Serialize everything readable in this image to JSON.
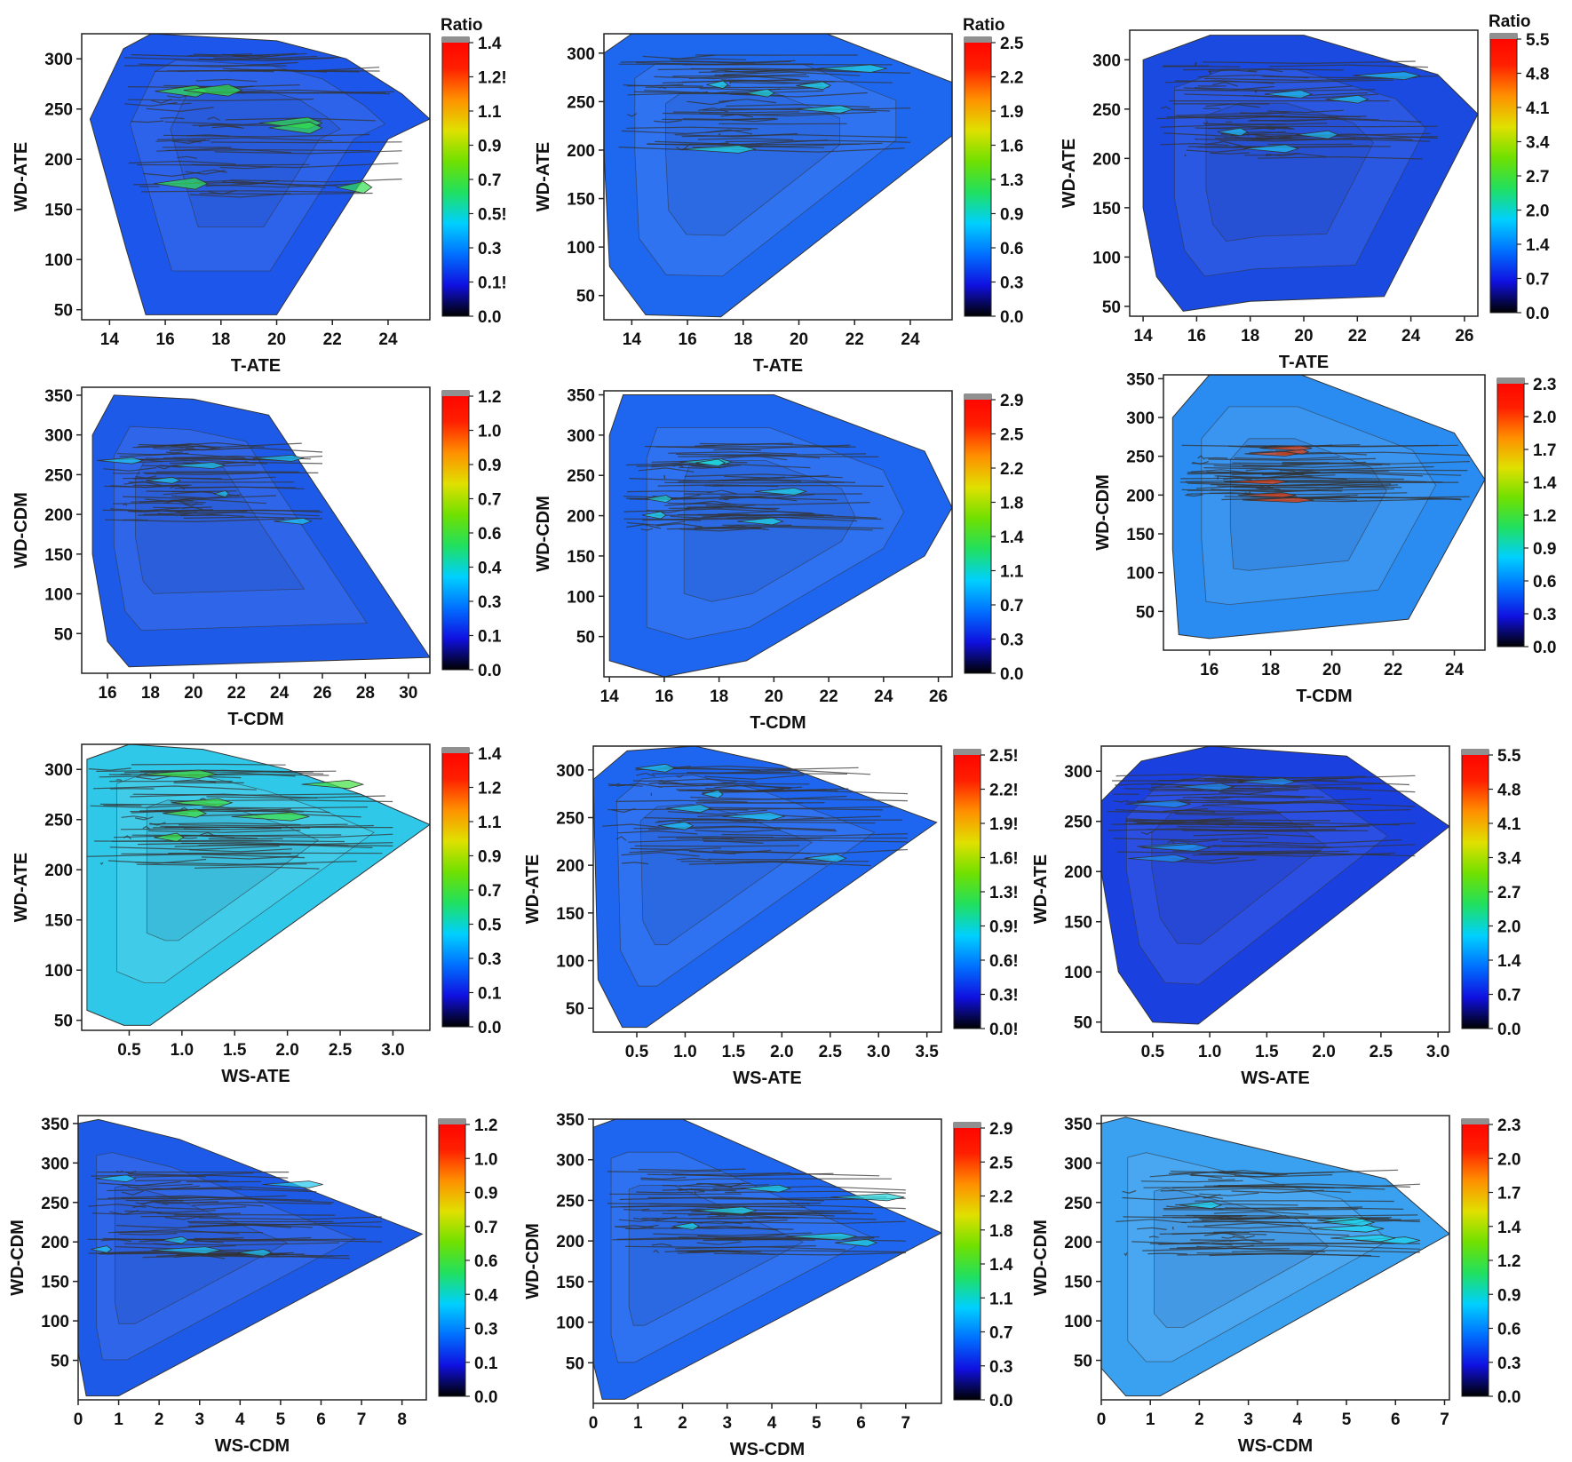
{
  "figure_caption": "",
  "colors": {
    "frame": "#222222",
    "contour_line": "#333333",
    "colormap": [
      "#000000",
      "#1010e0",
      "#0070ff",
      "#00d0ff",
      "#20e060",
      "#70e000",
      "#e0e000",
      "#ff9000",
      "#ff2000",
      "#ff0000"
    ],
    "colorbar_cap": "#909090"
  },
  "chart_data": [
    {
      "type": "heatmap",
      "xlabel": "T-ATE",
      "ylabel": "WD-ATE",
      "colorbar_title": "Ratio",
      "xticks": [
        "14",
        "16",
        "18",
        "20",
        "22",
        "24"
      ],
      "yticks": [
        "50",
        "100",
        "150",
        "200",
        "250",
        "300"
      ],
      "xlim": [
        13,
        25.5
      ],
      "ylim": [
        40,
        325
      ],
      "colorbar_ticks": [
        "0.0",
        "0.1!",
        "0.3",
        "0.5!",
        "0.7",
        "0.9",
        "1.1",
        "1.2!",
        "1.4"
      ],
      "hull": [
        [
          15.3,
          45
        ],
        [
          14.6,
          110
        ],
        [
          13.3,
          240
        ],
        [
          14.5,
          310
        ],
        [
          15.5,
          325
        ],
        [
          20,
          318
        ],
        [
          22.5,
          300
        ],
        [
          24.5,
          265
        ],
        [
          25.5,
          240
        ],
        [
          24,
          220
        ],
        [
          20,
          45
        ]
      ],
      "dense_band": [
        14.5,
        24.5,
        160,
        305
      ],
      "base_color": "#1c56ea",
      "accent_color": "#30e050"
    },
    {
      "type": "heatmap",
      "xlabel": "T-ATE",
      "ylabel": "WD-ATE",
      "colorbar_title": "Ratio",
      "xticks": [
        "14",
        "16",
        "18",
        "20",
        "22",
        "24"
      ],
      "yticks": [
        "50",
        "100",
        "150",
        "200",
        "250",
        "300"
      ],
      "xlim": [
        13,
        25.5
      ],
      "ylim": [
        25,
        320
      ],
      "colorbar_ticks": [
        "0.0",
        "0.3",
        "0.6",
        "0.9",
        "1.3",
        "1.6",
        "1.9",
        "2.2",
        "2.5"
      ],
      "hull": [
        [
          14.5,
          30
        ],
        [
          13.2,
          80
        ],
        [
          13,
          200
        ],
        [
          13,
          300
        ],
        [
          14,
          320
        ],
        [
          21,
          320
        ],
        [
          25.5,
          270
        ],
        [
          25.5,
          215
        ],
        [
          17.2,
          28
        ]
      ],
      "dense_band": [
        13.5,
        24,
        200,
        300
      ],
      "base_color": "#1e68f0",
      "accent_color": "#20d8e0"
    },
    {
      "type": "heatmap",
      "xlabel": "T-ATE",
      "ylabel": "WD-ATE",
      "colorbar_title": "Ratio",
      "xticks": [
        "14",
        "16",
        "18",
        "20",
        "22",
        "24",
        "26"
      ],
      "yticks": [
        "50",
        "100",
        "150",
        "200",
        "250",
        "300"
      ],
      "xlim": [
        13.5,
        26.5
      ],
      "ylim": [
        40,
        330
      ],
      "colorbar_ticks": [
        "0.0",
        "0.7",
        "1.4",
        "2.0",
        "2.7",
        "3.4",
        "4.1",
        "4.8",
        "5.5"
      ],
      "hull": [
        [
          15.5,
          45
        ],
        [
          14.5,
          80
        ],
        [
          14,
          150
        ],
        [
          14,
          300
        ],
        [
          16.5,
          325
        ],
        [
          20,
          325
        ],
        [
          25,
          285
        ],
        [
          26.5,
          245
        ],
        [
          23,
          60
        ],
        [
          18,
          55
        ]
      ],
      "dense_band": [
        14.5,
        25,
        200,
        300
      ],
      "base_color": "#1a4ae0",
      "accent_color": "#20c0f0"
    },
    {
      "type": "heatmap",
      "xlabel": "T-CDM",
      "ylabel": "WD-CDM",
      "colorbar_title": "",
      "xticks": [
        "16",
        "18",
        "20",
        "22",
        "24",
        "26",
        "28",
        "30"
      ],
      "yticks": [
        "50",
        "100",
        "150",
        "200",
        "250",
        "300",
        "350"
      ],
      "xlim": [
        14.8,
        31
      ],
      "ylim": [
        0,
        360
      ],
      "colorbar_ticks": [
        "0.0",
        "0.1",
        "0.3",
        "0.4",
        "0.6",
        "0.7",
        "0.9",
        "1.0",
        "1.2"
      ],
      "hull": [
        [
          17,
          8
        ],
        [
          16,
          40
        ],
        [
          15.3,
          150
        ],
        [
          15.3,
          300
        ],
        [
          16.3,
          350
        ],
        [
          20,
          345
        ],
        [
          23.5,
          325
        ],
        [
          31,
          20
        ]
      ],
      "dense_band": [
        15.5,
        26,
        190,
        290
      ],
      "base_color": "#1e5ae8",
      "accent_color": "#20c8f0"
    },
    {
      "type": "heatmap",
      "xlabel": "T-CDM",
      "ylabel": "WD-CDM",
      "colorbar_title": "",
      "xticks": [
        "14",
        "16",
        "18",
        "20",
        "22",
        "24",
        "26"
      ],
      "yticks": [
        "50",
        "100",
        "150",
        "200",
        "250",
        "300",
        "350"
      ],
      "xlim": [
        13.8,
        26.5
      ],
      "ylim": [
        0,
        355
      ],
      "colorbar_ticks": [
        "0.0",
        "0.3",
        "0.7",
        "1.1",
        "1.4",
        "1.8",
        "2.2",
        "2.5",
        "2.9"
      ],
      "hull": [
        [
          16,
          0
        ],
        [
          14,
          20
        ],
        [
          14,
          300
        ],
        [
          14.5,
          350
        ],
        [
          20,
          350
        ],
        [
          25.5,
          280
        ],
        [
          26.5,
          210
        ],
        [
          25.5,
          150
        ],
        [
          19,
          20
        ]
      ],
      "dense_band": [
        14.5,
        24,
        180,
        290
      ],
      "base_color": "#1e66f0",
      "accent_color": "#20d8e0"
    },
    {
      "type": "heatmap",
      "xlabel": "T-CDM",
      "ylabel": "WD-CDM",
      "colorbar_title": "",
      "xticks": [
        "16",
        "18",
        "20",
        "22",
        "24"
      ],
      "yticks": [
        "50",
        "100",
        "150",
        "200",
        "250",
        "300",
        "350"
      ],
      "xlim": [
        14.5,
        25
      ],
      "ylim": [
        0,
        355
      ],
      "colorbar_ticks": [
        "0.0",
        "0.3",
        "0.6",
        "0.9",
        "1.2",
        "1.4",
        "1.7",
        "2.0",
        "2.3"
      ],
      "hull": [
        [
          15,
          20
        ],
        [
          14.8,
          130
        ],
        [
          14.8,
          300
        ],
        [
          16,
          355
        ],
        [
          19,
          355
        ],
        [
          24,
          280
        ],
        [
          25,
          220
        ],
        [
          22.5,
          40
        ],
        [
          16,
          15
        ]
      ],
      "dense_band": [
        15,
        24.5,
        190,
        265
      ],
      "base_color": "#2a8cf0",
      "accent_color": "#f04010"
    },
    {
      "type": "heatmap",
      "xlabel": "WS-ATE",
      "ylabel": "WD-ATE",
      "colorbar_title": "",
      "xticks": [
        "0.5",
        "1.0",
        "1.5",
        "2.0",
        "2.5",
        "3.0"
      ],
      "yticks": [
        "50",
        "100",
        "150",
        "200",
        "250",
        "300"
      ],
      "xlim": [
        0.05,
        3.35
      ],
      "ylim": [
        40,
        325
      ],
      "colorbar_ticks": [
        "0.0",
        "0.1",
        "0.3",
        "0.5",
        "0.7",
        "0.9",
        "1.1",
        "1.2",
        "1.4"
      ],
      "hull": [
        [
          0.45,
          45
        ],
        [
          0.1,
          60
        ],
        [
          0.1,
          310
        ],
        [
          0.5,
          325
        ],
        [
          1.2,
          320
        ],
        [
          2.0,
          300
        ],
        [
          2.7,
          275
        ],
        [
          3.35,
          245
        ],
        [
          0.7,
          45
        ]
      ],
      "dense_band": [
        0.1,
        3.0,
        200,
        305
      ],
      "base_color": "#30c8e8",
      "accent_color": "#40e040"
    },
    {
      "type": "heatmap",
      "xlabel": "WS-ATE",
      "ylabel": "WD-ATE",
      "colorbar_title": "",
      "xticks": [
        "0.5",
        "1.0",
        "1.5",
        "2.0",
        "2.5",
        "3.0",
        "3.5"
      ],
      "yticks": [
        "50",
        "100",
        "150",
        "200",
        "250",
        "300"
      ],
      "xlim": [
        0.05,
        3.65
      ],
      "ylim": [
        25,
        325
      ],
      "colorbar_ticks": [
        "0.0!",
        "0.3!",
        "0.6!",
        "0.9!",
        "1.3!",
        "1.6!",
        "1.9!",
        "2.2!",
        "2.5!"
      ],
      "hull": [
        [
          0.35,
          30
        ],
        [
          0.1,
          80
        ],
        [
          0.05,
          290
        ],
        [
          0.4,
          320
        ],
        [
          1.1,
          325
        ],
        [
          2.0,
          305
        ],
        [
          3.6,
          245
        ],
        [
          0.6,
          30
        ]
      ],
      "dense_band": [
        0.1,
        3.3,
        200,
        305
      ],
      "base_color": "#1e66f0",
      "accent_color": "#20c8f0"
    },
    {
      "type": "heatmap",
      "xlabel": "WS-ATE",
      "ylabel": "WD-ATE",
      "colorbar_title": "",
      "xticks": [
        "0.5",
        "1.0",
        "1.5",
        "2.0",
        "2.5",
        "3.0"
      ],
      "yticks": [
        "50",
        "100",
        "150",
        "200",
        "250",
        "300"
      ],
      "xlim": [
        0.05,
        3.1
      ],
      "ylim": [
        40,
        325
      ],
      "colorbar_ticks": [
        "0.0",
        "0.7",
        "1.4",
        "2.0",
        "2.7",
        "3.4",
        "4.1",
        "4.8",
        "5.5"
      ],
      "hull": [
        [
          0.5,
          50
        ],
        [
          0.2,
          100
        ],
        [
          0.05,
          200
        ],
        [
          0.05,
          270
        ],
        [
          0.4,
          310
        ],
        [
          1.0,
          325
        ],
        [
          2.2,
          315
        ],
        [
          3.1,
          245
        ],
        [
          0.9,
          48
        ]
      ],
      "dense_band": [
        0.1,
        2.8,
        210,
        300
      ],
      "base_color": "#1a40e0",
      "accent_color": "#2090f0"
    },
    {
      "type": "heatmap",
      "xlabel": "WS-CDM",
      "ylabel": "WD-CDM",
      "colorbar_title": "",
      "xticks": [
        "0",
        "1",
        "2",
        "3",
        "4",
        "5",
        "6",
        "7",
        "8"
      ],
      "yticks": [
        "50",
        "100",
        "150",
        "200",
        "250",
        "300",
        "350"
      ],
      "xlim": [
        0,
        8.6
      ],
      "ylim": [
        0,
        360
      ],
      "colorbar_ticks": [
        "0.0",
        "0.1",
        "0.3",
        "0.4",
        "0.6",
        "0.7",
        "0.9",
        "1.0",
        "1.2"
      ],
      "hull": [
        [
          0.2,
          5
        ],
        [
          0,
          60
        ],
        [
          0,
          350
        ],
        [
          0.5,
          355
        ],
        [
          2.5,
          330
        ],
        [
          8.5,
          210
        ],
        [
          1.0,
          5
        ]
      ],
      "dense_band": [
        0.2,
        7.5,
        180,
        290
      ],
      "base_color": "#1e5ae8",
      "accent_color": "#20c8f0"
    },
    {
      "type": "heatmap",
      "xlabel": "WS-CDM",
      "ylabel": "WD-CDM",
      "colorbar_title": "",
      "xticks": [
        "0",
        "1",
        "2",
        "3",
        "4",
        "5",
        "6",
        "7"
      ],
      "yticks": [
        "50",
        "100",
        "150",
        "200",
        "250",
        "300",
        "350"
      ],
      "xlim": [
        0,
        7.8
      ],
      "ylim": [
        0,
        350
      ],
      "colorbar_ticks": [
        "0.0",
        "0.3",
        "0.7",
        "1.1",
        "1.4",
        "1.8",
        "2.2",
        "2.5",
        "2.9"
      ],
      "hull": [
        [
          0.2,
          5
        ],
        [
          0,
          50
        ],
        [
          0,
          340
        ],
        [
          0.5,
          350
        ],
        [
          2,
          350
        ],
        [
          7.8,
          210
        ],
        [
          0.7,
          5
        ]
      ],
      "dense_band": [
        0.3,
        7,
        180,
        290
      ],
      "base_color": "#1e66f0",
      "accent_color": "#20d8e0"
    },
    {
      "type": "heatmap",
      "xlabel": "WS-CDM",
      "ylabel": "WD-CDM",
      "colorbar_title": "",
      "xticks": [
        "0",
        "1",
        "2",
        "3",
        "4",
        "5",
        "6",
        "7"
      ],
      "yticks": [
        "50",
        "100",
        "150",
        "200",
        "250",
        "300",
        "350"
      ],
      "xlim": [
        0,
        7.1
      ],
      "ylim": [
        0,
        360
      ],
      "colorbar_ticks": [
        "0.0",
        "0.3",
        "0.6",
        "0.9",
        "1.2",
        "1.4",
        "1.7",
        "2.0",
        "2.3"
      ],
      "hull": [
        [
          0.5,
          5
        ],
        [
          0,
          40
        ],
        [
          0,
          350
        ],
        [
          0.5,
          358
        ],
        [
          5.8,
          280
        ],
        [
          7.1,
          210
        ],
        [
          1.2,
          5
        ]
      ],
      "dense_band": [
        0.2,
        6.5,
        180,
        290
      ],
      "base_color": "#3aa0f0",
      "accent_color": "#20d8f0"
    }
  ]
}
